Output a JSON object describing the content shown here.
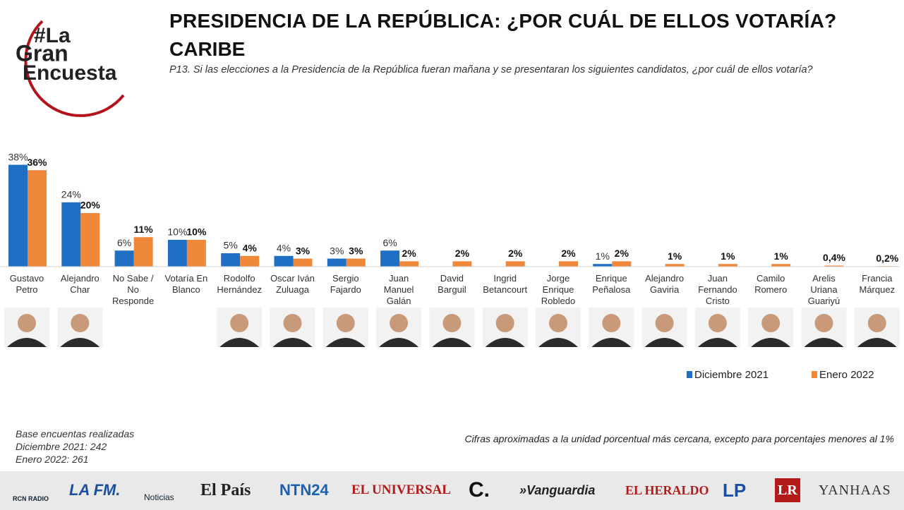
{
  "logo": [
    "#La",
    "Gran",
    "Encuesta"
  ],
  "chart_data": {
    "type": "bar",
    "title": "PRESIDENCIA DE LA REPÚBLICA: ¿POR CUÁL DE ELLOS VOTARÍA?",
    "subtitle": "CARIBE",
    "question": "P13. Si las elecciones a la Presidencia de la República fueran mañana y se presentaran los siguientes candidatos, ¿por cuál de ellos votaría?",
    "categories": [
      "Gustavo Petro",
      "Alejandro Char",
      "No Sabe / No Responde",
      "Votaría En Blanco",
      "Rodolfo Hernández",
      "Oscar Iván Zuluaga",
      "Sergio Fajardo",
      "Juan Manuel Galán",
      "David Barguil",
      "Ingrid Betancourt",
      "Jorge Enrique Robledo",
      "Enrique Peñalosa",
      "Alejandro Gaviria",
      "Juan Fernando Cristo",
      "Camilo Romero",
      "Arelis Uriana Guariyú",
      "Francia Márquez"
    ],
    "series": [
      {
        "name": "Diciembre 2021",
        "color": "#1f6fc5",
        "values": [
          38,
          24,
          6,
          10,
          5,
          4,
          3,
          6,
          null,
          null,
          null,
          1,
          null,
          null,
          null,
          null,
          null
        ],
        "value_labels": [
          "38%",
          "24%",
          "6%",
          "10%",
          "5%",
          "4%",
          "3%",
          "6%",
          null,
          null,
          null,
          "1%",
          null,
          null,
          null,
          null,
          null
        ]
      },
      {
        "name": "Enero 2022",
        "color": "#f0883a",
        "values": [
          36,
          20,
          11,
          10,
          4,
          3,
          3,
          2,
          2,
          2,
          2,
          2,
          1,
          1,
          1,
          0.4,
          0.2
        ],
        "value_labels": [
          "36%",
          "20%",
          "11%",
          "10%",
          "4%",
          "3%",
          "3%",
          "2%",
          "2%",
          "2%",
          "2%",
          "2%",
          "1%",
          "1%",
          "1%",
          "0,4%",
          "0,2%"
        ]
      }
    ],
    "ylim": [
      0,
      40
    ],
    "legend": "bottom-right"
  },
  "notes": [
    "Base encuentas realizadas",
    "Diciembre 2021: 242",
    "Enero 2022: 261"
  ],
  "footnote": "Cifras aproximadas a la unidad porcentual más cercana, excepto para porcentajes menores al 1%",
  "media": [
    "RCN RADIO",
    "LA FM.",
    "Noticias",
    "El País",
    "NTN24",
    "EL UNIVERSAL",
    "C.",
    "»Vanguardia",
    "EL HERALDO",
    "LP",
    "LR",
    "YANHAAS"
  ]
}
